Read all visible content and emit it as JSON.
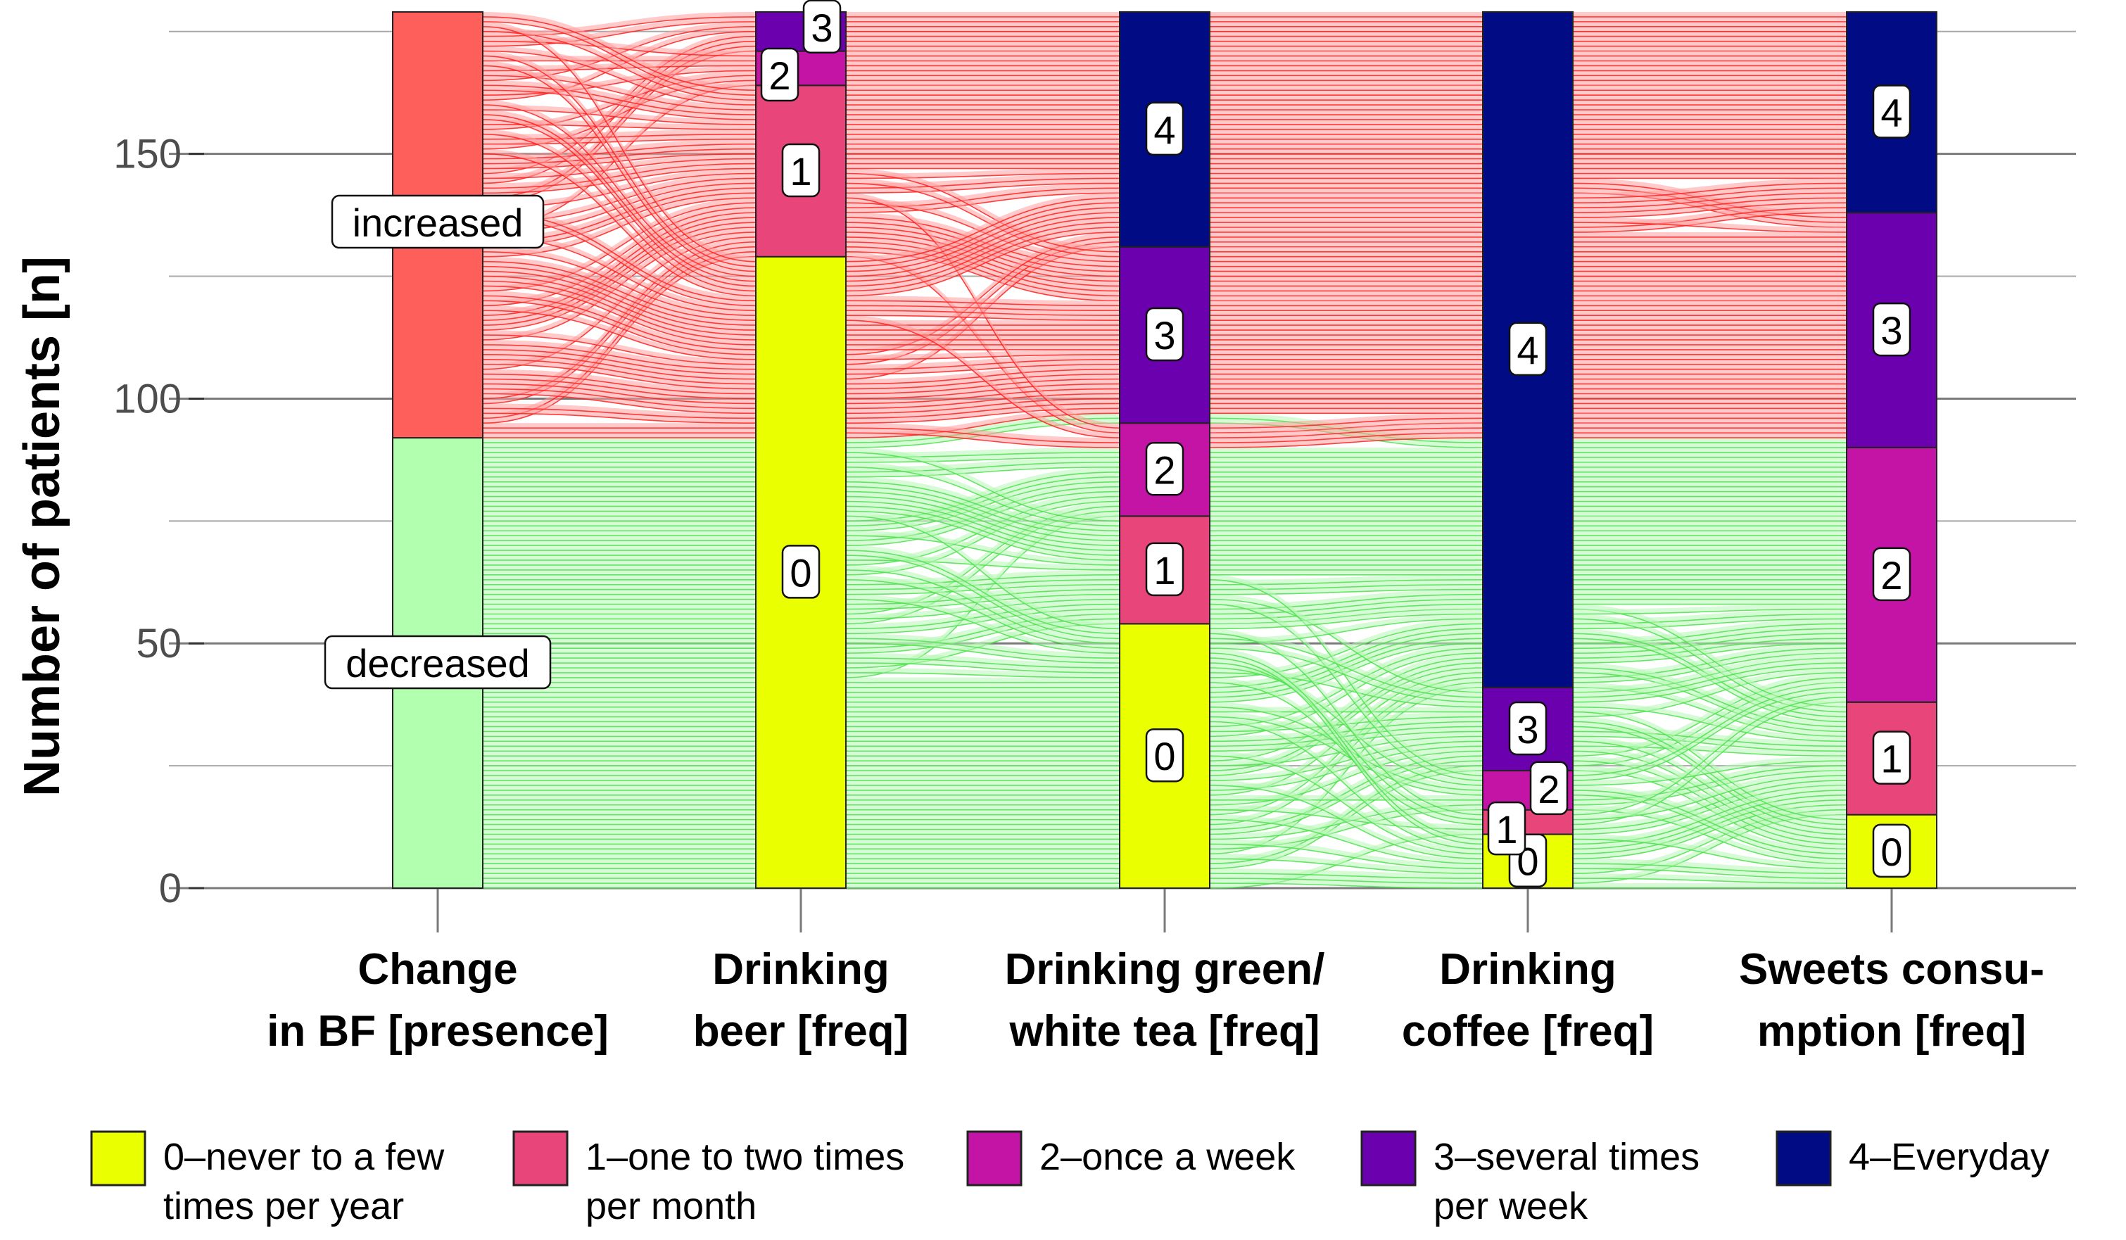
{
  "colors": {
    "increased_fill": "#ff5f5a",
    "decreased_fill": "#b2ffb0",
    "increased_flow": "#ff9e9c",
    "increased_line": "#ff2020",
    "decreased_flow": "#b6f7b4",
    "decreased_line": "#4ee04e",
    "freq": [
      "#eaff00",
      "#e8457a",
      "#c414a6",
      "#6a00ae",
      "#000b84"
    ],
    "grid_major": "#7a7a7a",
    "grid_minor": "#a8a8a8"
  },
  "chart_data": {
    "type": "alluvial",
    "ylabel": "Number of patients [n]",
    "ylim": [
      0,
      180
    ],
    "yticks": [
      0,
      50,
      100,
      150
    ],
    "y_tick_labels": [
      "0",
      "50",
      "100",
      "150"
    ],
    "axes": [
      {
        "name_lines": [
          "Change",
          "in BF [presence]"
        ],
        "strata": [
          {
            "label": "decreased",
            "value": 92,
            "color_key": "decreased"
          },
          {
            "label": "increased",
            "value": 87,
            "color_key": "increased"
          }
        ]
      },
      {
        "name_lines": [
          "Drinking",
          "beer [freq]"
        ],
        "strata": [
          {
            "label": "0",
            "value": 129,
            "level": 0
          },
          {
            "label": "1",
            "value": 35,
            "level": 1
          },
          {
            "label": "2",
            "value": 7,
            "level": 2
          },
          {
            "label": "3",
            "value": 8,
            "level": 3
          }
        ]
      },
      {
        "name_lines": [
          "Drinking green/",
          "white tea [freq]"
        ],
        "strata": [
          {
            "label": "0",
            "value": 54,
            "level": 0
          },
          {
            "label": "1",
            "value": 22,
            "level": 1
          },
          {
            "label": "2",
            "value": 19,
            "level": 2
          },
          {
            "label": "3",
            "value": 36,
            "level": 3
          },
          {
            "label": "4",
            "value": 48,
            "level": 4
          }
        ]
      },
      {
        "name_lines": [
          "Drinking",
          "coffee [freq]"
        ],
        "strata": [
          {
            "label": "0",
            "value": 11,
            "level": 0
          },
          {
            "label": "1",
            "value": 5,
            "level": 1
          },
          {
            "label": "2",
            "value": 8,
            "level": 2
          },
          {
            "label": "3",
            "value": 17,
            "level": 3
          },
          {
            "label": "4",
            "value": 138,
            "level": 4
          }
        ]
      },
      {
        "name_lines": [
          "Sweets consu-",
          "mption [freq]"
        ],
        "strata": [
          {
            "label": "0",
            "value": 15,
            "level": 0
          },
          {
            "label": "1",
            "value": 23,
            "level": 1
          },
          {
            "label": "2",
            "value": 52,
            "level": 2
          },
          {
            "label": "3",
            "value": 48,
            "level": 3
          },
          {
            "label": "4",
            "value": 41,
            "level": 4
          }
        ]
      }
    ],
    "groups": [
      {
        "name": "decreased",
        "total": 92
      },
      {
        "name": "increased",
        "total": 87
      }
    ],
    "legend": {
      "placement": "bottom",
      "items": [
        {
          "lines": [
            "0–never to a few",
            "times per year"
          ],
          "level": 0
        },
        {
          "lines": [
            "1–one to two times",
            "per month"
          ],
          "level": 1
        },
        {
          "lines": [
            "2–once a week"
          ],
          "level": 2
        },
        {
          "lines": [
            "3–several times",
            "per week"
          ],
          "level": 3
        },
        {
          "lines": [
            "4–Everyday"
          ],
          "level": 4
        }
      ]
    }
  }
}
